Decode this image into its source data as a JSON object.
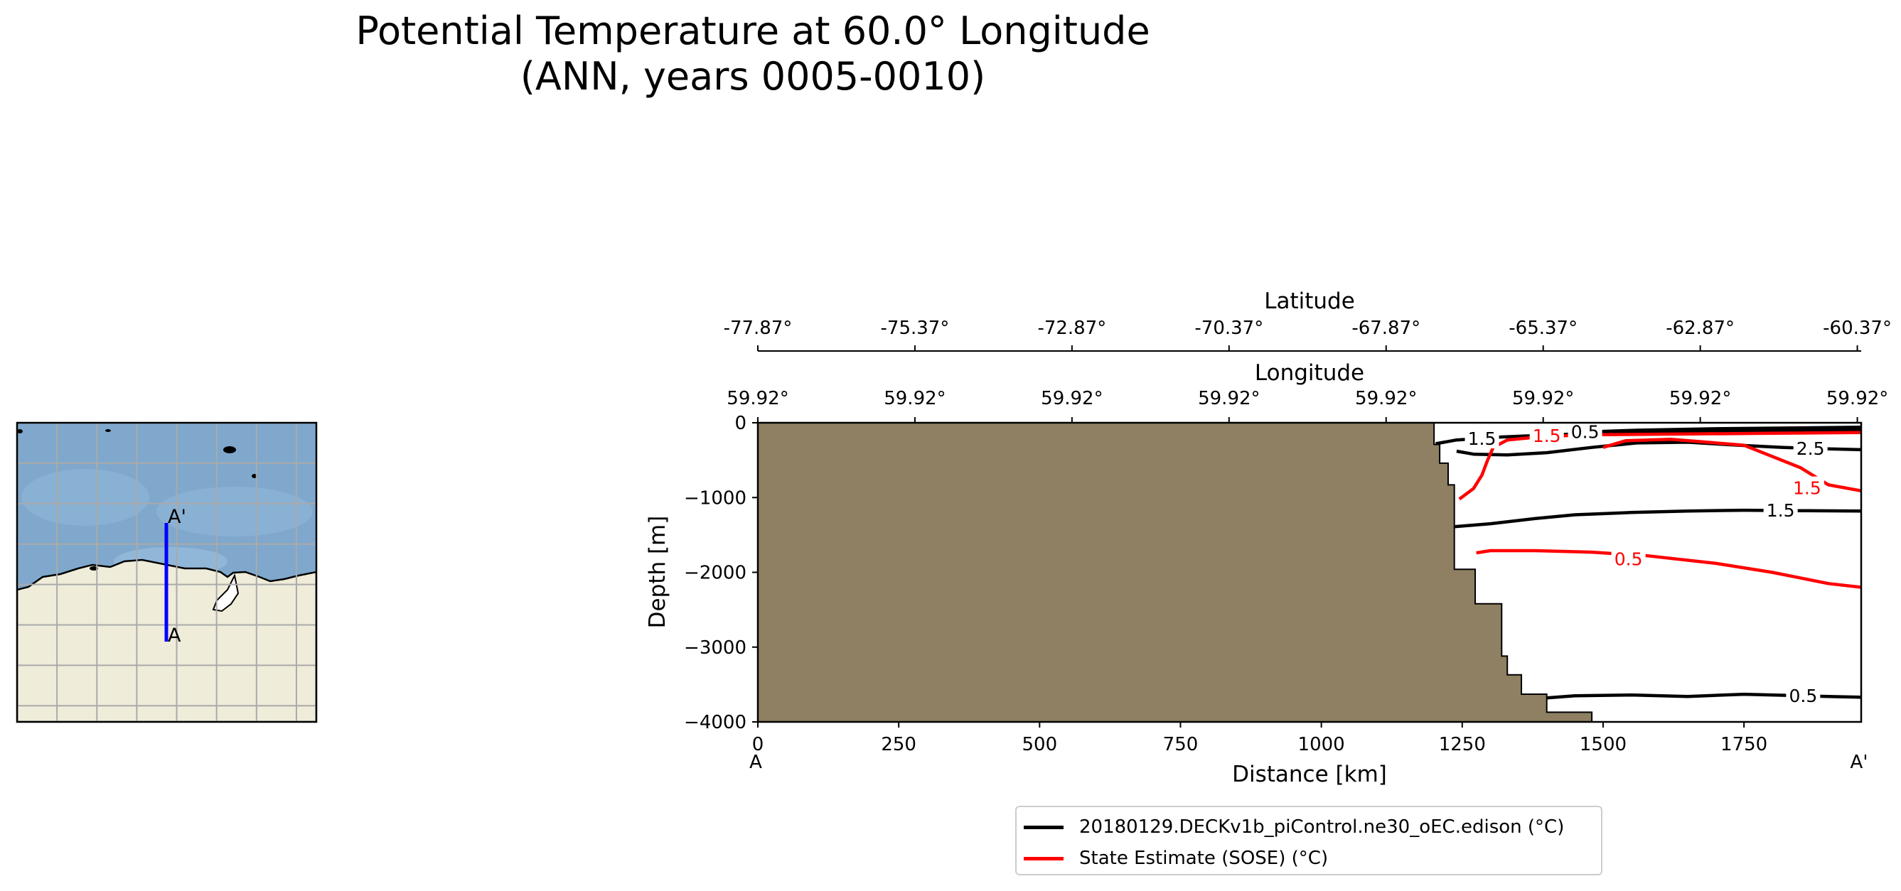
{
  "figure": {
    "title_line1": "Potential Temperature at 60.0° Longitude",
    "title_line2": "(ANN, years 0005-0010)"
  },
  "colors": {
    "model": "#000000",
    "observations": "#ff0000",
    "land_mask": "#8f8063",
    "inset_ocean": "#7fa8cc",
    "inset_land": "#efecd9",
    "transect_line": "#0000ff"
  },
  "inset_map": {
    "start_label": "A",
    "end_label": "A'"
  },
  "chart_data": {
    "type": "line",
    "plot_kind": "vertical transect contour plot",
    "xlabel": "Distance [km]",
    "ylabel": "Depth [m]",
    "xlim": [
      0,
      1958
    ],
    "ylim": [
      -4000,
      0
    ],
    "x_ticks": [
      0,
      250,
      500,
      750,
      1000,
      1250,
      1500,
      1750
    ],
    "y_ticks": [
      0,
      -1000,
      -2000,
      -3000,
      -4000
    ],
    "y_tick_labels": [
      "0",
      "−1000",
      "−2000",
      "−3000",
      "−4000"
    ],
    "x_start_label": "A",
    "x_end_label": "A'",
    "top_axis_1": {
      "label": "Latitude",
      "tick_labels": [
        "-77.87°",
        "-75.37°",
        "-72.87°",
        "-70.37°",
        "-67.87°",
        "-65.37°",
        "-62.87°",
        "-60.37°"
      ]
    },
    "top_axis_2": {
      "label": "Longitude",
      "tick_labels": [
        "59.92°",
        "59.92°",
        "59.92°",
        "59.92°",
        "59.92°",
        "59.92°",
        "59.92°",
        "59.92°"
      ]
    },
    "land_mask_bottom": [
      [
        0,
        0
      ],
      [
        1200,
        0
      ],
      [
        1200,
        -290
      ],
      [
        1210,
        -290
      ],
      [
        1210,
        -540
      ],
      [
        1225,
        -540
      ],
      [
        1225,
        -830
      ],
      [
        1236,
        -830
      ],
      [
        1236,
        -1960
      ],
      [
        1273,
        -1960
      ],
      [
        1273,
        -2420
      ],
      [
        1320,
        -2420
      ],
      [
        1320,
        -3120
      ],
      [
        1330,
        -3120
      ],
      [
        1330,
        -3370
      ],
      [
        1355,
        -3370
      ],
      [
        1355,
        -3630
      ],
      [
        1400,
        -3630
      ],
      [
        1400,
        -3870
      ],
      [
        1480,
        -3870
      ],
      [
        1480,
        -4000
      ]
    ],
    "series": [
      {
        "name": "20180129.DECKv1b_piControl.ne30_oEC.edison (°C)",
        "color": "#000000",
        "contours": [
          {
            "level": "1.5",
            "points": [
              [
                1203,
                -280
              ],
              [
                1240,
                -230
              ],
              [
                1320,
                -190
              ],
              [
                1450,
                -150
              ],
              [
                1550,
                -130
              ],
              [
                1650,
                -120
              ],
              [
                1750,
                -110
              ],
              [
                1958,
                -100
              ]
            ],
            "label_at": [
              1285,
              -210
            ]
          },
          {
            "level": "0.5",
            "points": [
              [
                1480,
                -120
              ],
              [
                1560,
                -100
              ],
              [
                1700,
                -80
              ],
              [
                1958,
                -60
              ]
            ],
            "label_at": [
              1468,
              -120
            ]
          },
          {
            "level": "2.5",
            "points": [
              [
                1240,
                -380
              ],
              [
                1270,
                -420
              ],
              [
                1330,
                -430
              ],
              [
                1400,
                -400
              ],
              [
                1480,
                -330
              ],
              [
                1560,
                -270
              ],
              [
                1650,
                -260
              ],
              [
                1740,
                -300
              ],
              [
                1820,
                -330
              ],
              [
                1900,
                -350
              ],
              [
                1958,
                -360
              ]
            ],
            "label_at": [
              1868,
              -340
            ]
          },
          {
            "level": "1.5",
            "points": [
              [
                1236,
                -1390
              ],
              [
                1300,
                -1350
              ],
              [
                1380,
                -1280
              ],
              [
                1450,
                -1230
              ],
              [
                1550,
                -1200
              ],
              [
                1650,
                -1180
              ],
              [
                1750,
                -1170
              ],
              [
                1850,
                -1175
              ],
              [
                1958,
                -1180
              ]
            ],
            "label_at": [
              1815,
              -1170
            ]
          },
          {
            "level": "0.5",
            "points": [
              [
                1400,
                -3680
              ],
              [
                1450,
                -3650
              ],
              [
                1550,
                -3640
              ],
              [
                1650,
                -3660
              ],
              [
                1750,
                -3630
              ],
              [
                1800,
                -3640
              ],
              [
                1900,
                -3660
              ],
              [
                1958,
                -3670
              ]
            ],
            "label_at": [
              1855,
              -3650
            ]
          }
        ]
      },
      {
        "name": "State Estimate (SOSE) (°C)",
        "color": "#ff0000",
        "contours": [
          {
            "level": "1.5",
            "points": [
              [
                1245,
                -1020
              ],
              [
                1270,
                -880
              ],
              [
                1285,
                -700
              ],
              [
                1295,
                -500
              ],
              [
                1305,
                -330
              ],
              [
                1330,
                -230
              ],
              [
                1400,
                -180
              ],
              [
                1500,
                -160
              ],
              [
                1650,
                -150
              ],
              [
                1800,
                -140
              ],
              [
                1958,
                -130
              ]
            ],
            "label_at": [
              1400,
              -170
            ]
          },
          {
            "level": "1.5",
            "points": [
              [
                1500,
                -330
              ],
              [
                1540,
                -240
              ],
              [
                1620,
                -220
              ],
              [
                1750,
                -300
              ],
              [
                1850,
                -600
              ],
              [
                1900,
                -830
              ],
              [
                1958,
                -910
              ]
            ],
            "label_at": [
              1862,
              -870
            ]
          },
          {
            "level": "0.5",
            "points": [
              [
                1275,
                -1740
              ],
              [
                1300,
                -1710
              ],
              [
                1380,
                -1710
              ],
              [
                1480,
                -1730
              ],
              [
                1580,
                -1780
              ],
              [
                1700,
                -1880
              ],
              [
                1800,
                -2000
              ],
              [
                1900,
                -2150
              ],
              [
                1958,
                -2200
              ]
            ],
            "label_at": [
              1545,
              -1820
            ]
          }
        ]
      }
    ],
    "legend_placement": "below"
  }
}
